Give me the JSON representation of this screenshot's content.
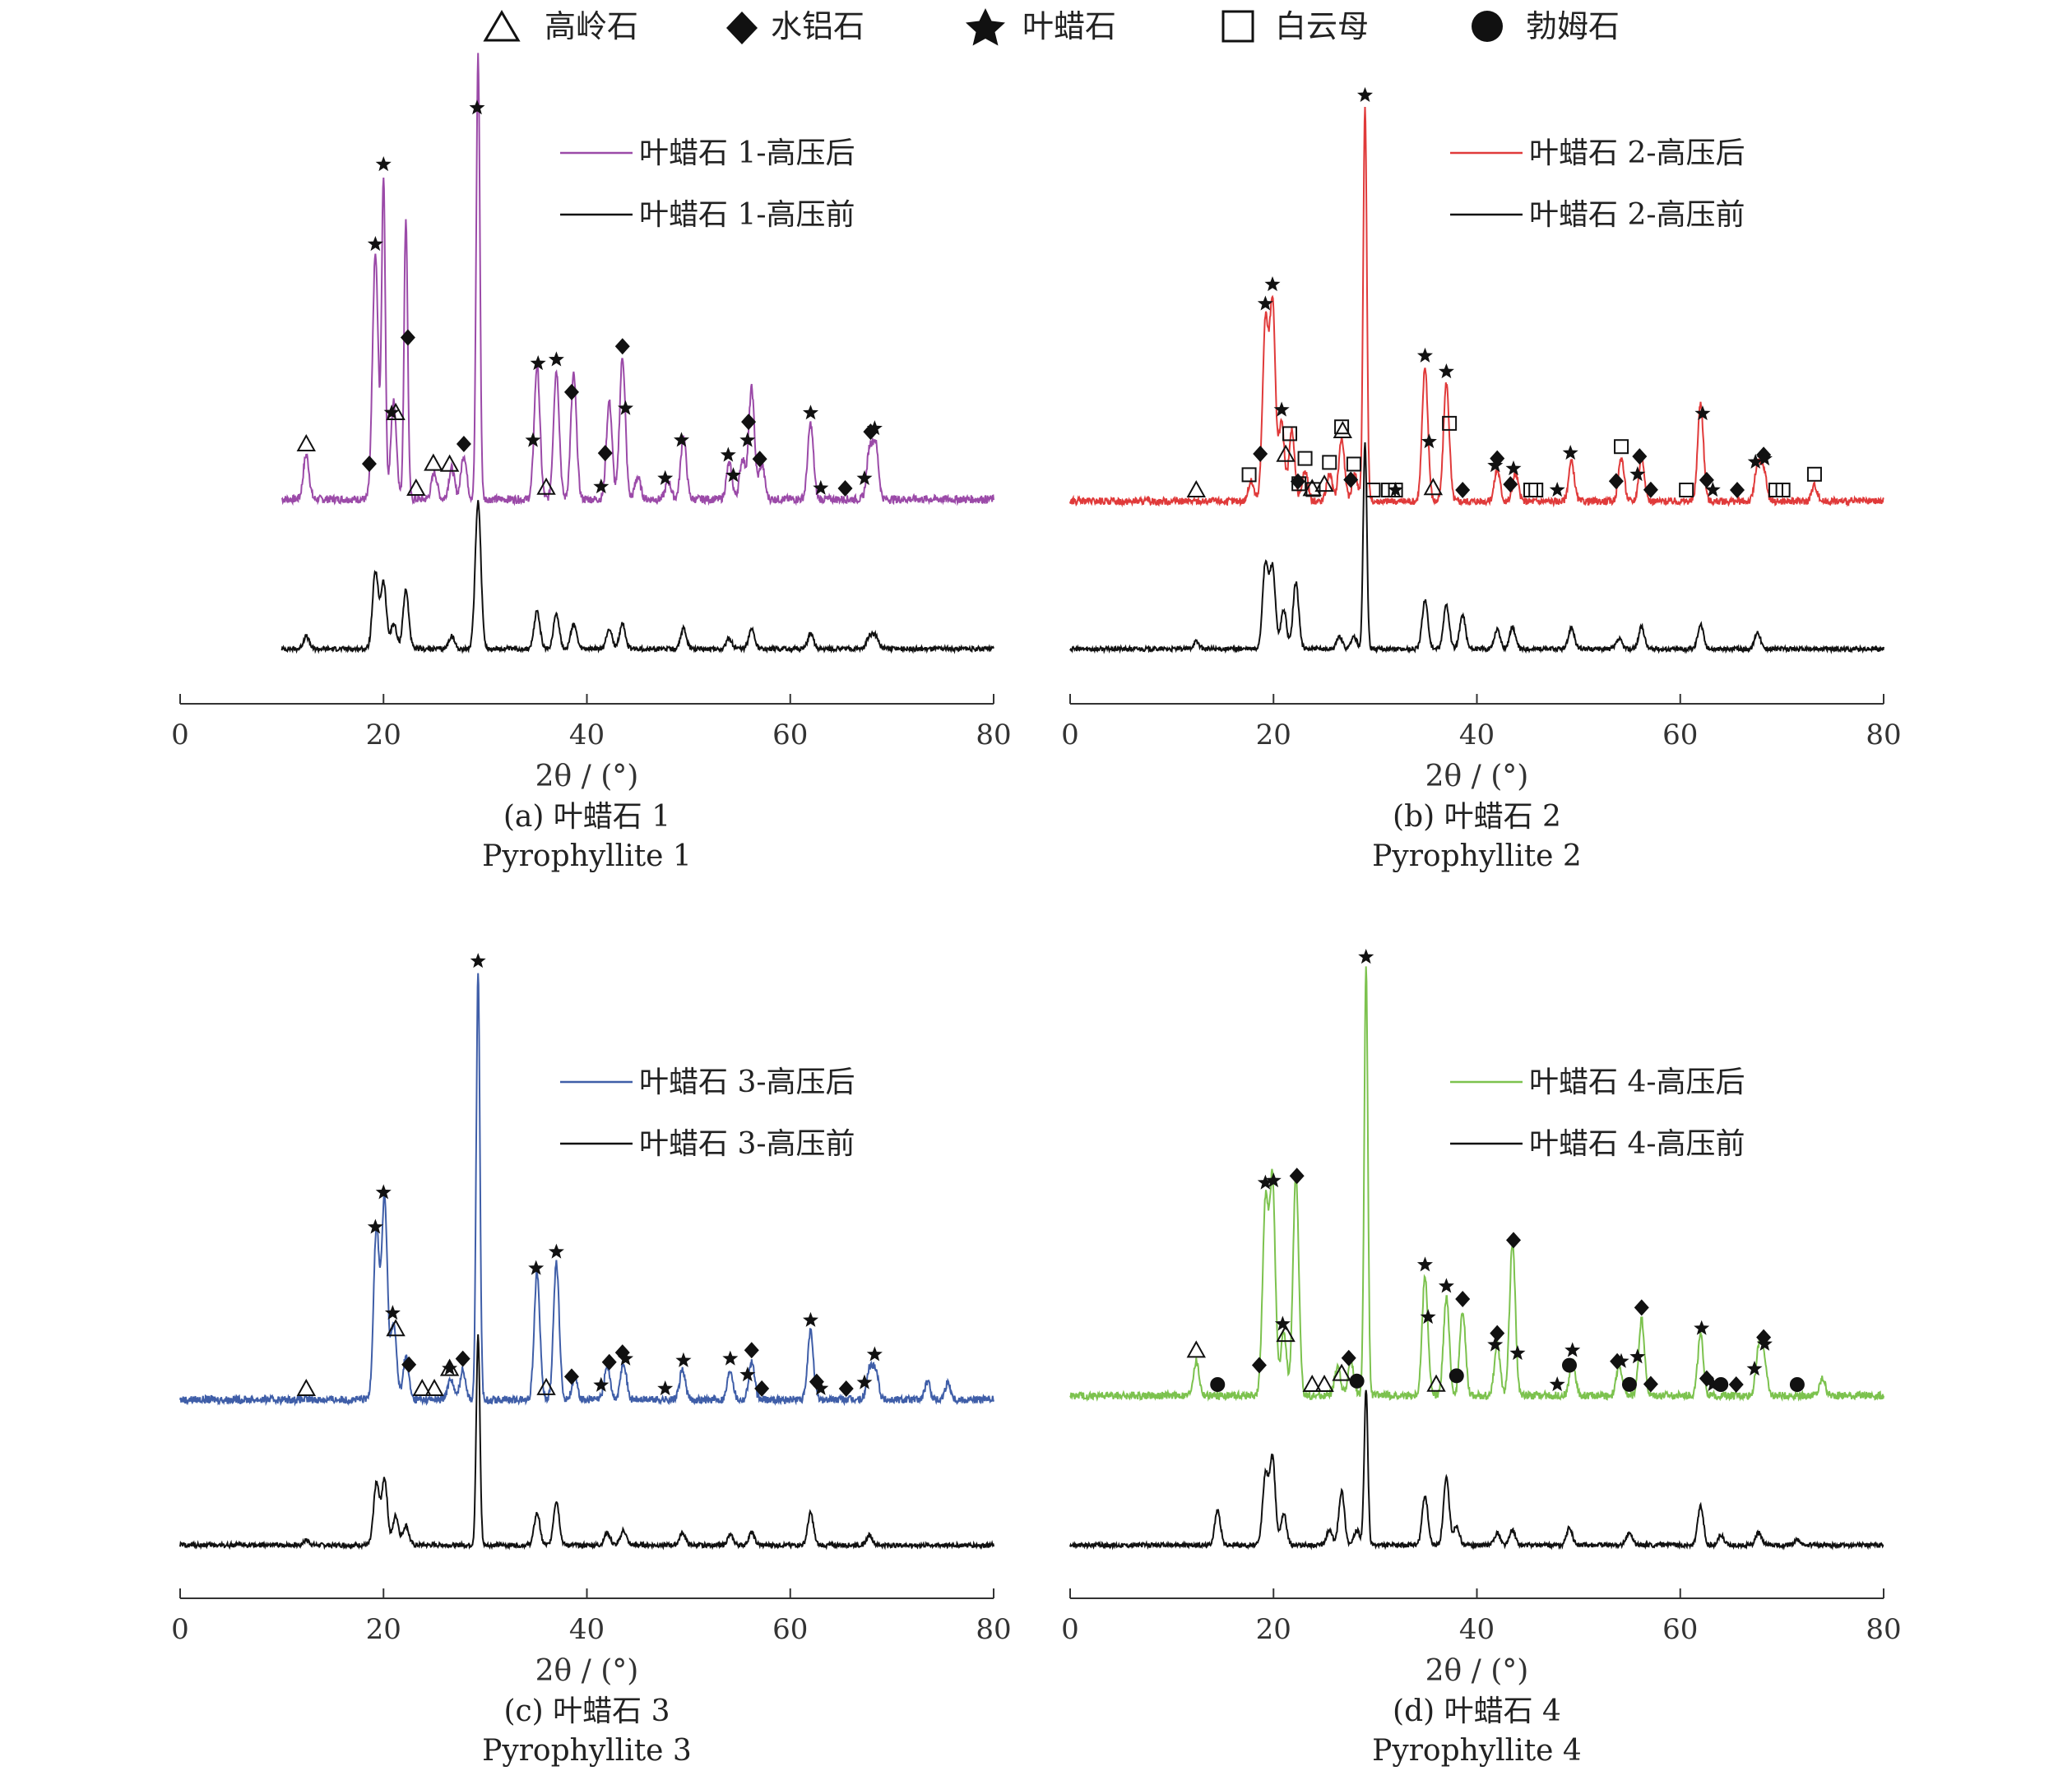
{
  "legend_top": [
    {
      "label": "高岭石",
      "marker": "triangle-open"
    },
    {
      "label": "水铝石",
      "marker": "diamond-filled"
    },
    {
      "label": "叶蜡石",
      "marker": "star-filled"
    },
    {
      "label": "白云母",
      "marker": "square-open"
    },
    {
      "label": "勃姆石",
      "marker": "circle-filled"
    }
  ],
  "chart_data": [
    {
      "type": "line",
      "caption_cn": "(a) 叶蜡石 1",
      "caption_en": "Pyrophyllite 1",
      "xlabel": "2θ / (°)",
      "xlim": [
        0,
        80
      ],
      "xticks": [
        0,
        20,
        40,
        60,
        80
      ],
      "y_ticks_shown": false,
      "x_start": 10,
      "series": [
        {
          "name": "叶蜡石 1-高压后",
          "color": "#9b4aa8",
          "peaks": [
            [
              12.4,
              0.1
            ],
            [
              19.2,
              0.55
            ],
            [
              20.0,
              0.72
            ],
            [
              21.0,
              0.22
            ],
            [
              22.2,
              0.63
            ],
            [
              25.0,
              0.06
            ],
            [
              26.7,
              0.07
            ],
            [
              27.9,
              0.1
            ],
            [
              29.3,
              1.0
            ],
            [
              35.1,
              0.3
            ],
            [
              37.0,
              0.29
            ],
            [
              38.7,
              0.28
            ],
            [
              42.2,
              0.22
            ],
            [
              43.5,
              0.32
            ],
            [
              45.0,
              0.05
            ],
            [
              48.0,
              0.04
            ],
            [
              49.5,
              0.14
            ],
            [
              54.0,
              0.08
            ],
            [
              55.3,
              0.09
            ],
            [
              56.2,
              0.25
            ],
            [
              57.2,
              0.08
            ],
            [
              62.0,
              0.17
            ],
            [
              67.8,
              0.11
            ],
            [
              68.4,
              0.12
            ]
          ]
        },
        {
          "name": "叶蜡石 1-高压前",
          "color": "#111111",
          "peaks": [
            [
              12.4,
              0.05
            ],
            [
              19.2,
              0.3
            ],
            [
              20.0,
              0.26
            ],
            [
              21.0,
              0.1
            ],
            [
              22.2,
              0.23
            ],
            [
              26.7,
              0.05
            ],
            [
              29.3,
              0.58
            ],
            [
              35.1,
              0.15
            ],
            [
              37.0,
              0.14
            ],
            [
              38.7,
              0.1
            ],
            [
              42.2,
              0.08
            ],
            [
              43.5,
              0.1
            ],
            [
              49.5,
              0.08
            ],
            [
              54.0,
              0.04
            ],
            [
              56.2,
              0.08
            ],
            [
              62.0,
              0.06
            ],
            [
              67.8,
              0.05
            ],
            [
              68.4,
              0.05
            ]
          ]
        }
      ],
      "annotations": [
        {
          "marker": "triangle-open",
          "x": [
            12.4,
            21.2,
            23.2,
            24.9,
            26.5,
            36.0
          ]
        },
        {
          "marker": "diamond-filled",
          "x": [
            18.6,
            22.4,
            27.9,
            38.5,
            41.8,
            43.5,
            55.9,
            57.0,
            65.4,
            67.9
          ]
        },
        {
          "marker": "star-filled",
          "x": [
            19.2,
            20.0,
            20.8,
            29.2,
            34.7,
            35.2,
            37.0,
            41.4,
            43.8,
            47.7,
            49.3,
            53.9,
            54.4,
            55.8,
            62.0,
            63.0,
            67.3,
            68.3
          ]
        }
      ]
    },
    {
      "type": "line",
      "caption_cn": "(b) 叶蜡石 2",
      "caption_en": "Pyrophyllite 2",
      "xlabel": "2θ / (°)",
      "xlim": [
        0,
        80
      ],
      "xticks": [
        0,
        20,
        40,
        60,
        80
      ],
      "y_ticks_shown": false,
      "x_start": 0,
      "series": [
        {
          "name": "叶蜡石 2-高压后",
          "color": "#e03a3a",
          "peaks": [
            [
              17.8,
              0.05
            ],
            [
              19.2,
              0.45
            ],
            [
              19.9,
              0.5
            ],
            [
              20.8,
              0.2
            ],
            [
              21.8,
              0.18
            ],
            [
              23.1,
              0.08
            ],
            [
              25.5,
              0.07
            ],
            [
              26.7,
              0.16
            ],
            [
              28.0,
              0.07
            ],
            [
              29.0,
              1.0
            ],
            [
              34.9,
              0.34
            ],
            [
              37.0,
              0.3
            ],
            [
              42.0,
              0.08
            ],
            [
              43.8,
              0.07
            ],
            [
              49.3,
              0.1
            ],
            [
              54.2,
              0.11
            ],
            [
              56.2,
              0.11
            ],
            [
              62.0,
              0.25
            ],
            [
              67.6,
              0.09
            ],
            [
              68.2,
              0.08
            ],
            [
              73.2,
              0.04
            ]
          ]
        },
        {
          "name": "叶蜡石 2-高压前",
          "color": "#111111",
          "peaks": [
            [
              12.4,
              0.03
            ],
            [
              19.2,
              0.34
            ],
            [
              19.9,
              0.33
            ],
            [
              21.0,
              0.16
            ],
            [
              22.2,
              0.27
            ],
            [
              26.5,
              0.05
            ],
            [
              27.9,
              0.05
            ],
            [
              29.0,
              0.84
            ],
            [
              34.9,
              0.2
            ],
            [
              37.0,
              0.18
            ],
            [
              38.6,
              0.14
            ],
            [
              42.0,
              0.08
            ],
            [
              43.5,
              0.09
            ],
            [
              49.3,
              0.09
            ],
            [
              54.0,
              0.04
            ],
            [
              56.2,
              0.09
            ],
            [
              62.0,
              0.1
            ],
            [
              67.6,
              0.07
            ]
          ]
        }
      ],
      "annotations": [
        {
          "marker": "triangle-open",
          "x": [
            12.4,
            21.2,
            23.8,
            25.0,
            26.8,
            35.7
          ]
        },
        {
          "marker": "diamond-filled",
          "x": [
            18.7,
            22.4,
            27.6,
            38.6,
            42.0,
            43.3,
            53.7,
            56.0,
            57.1,
            62.6,
            65.6,
            68.2
          ]
        },
        {
          "marker": "star-filled",
          "x": [
            19.2,
            19.9,
            20.8,
            29.0,
            32.0,
            34.9,
            35.3,
            37.0,
            41.8,
            43.6,
            47.9,
            49.2,
            55.8,
            62.2,
            63.2,
            67.4,
            68.3
          ]
        },
        {
          "marker": "square-open",
          "x": [
            17.6,
            21.6,
            22.5,
            23.1,
            23.9,
            25.5,
            26.7,
            27.9,
            29.8,
            31.3,
            32.0,
            37.3,
            45.3,
            45.8,
            54.2,
            60.6,
            69.4,
            70.1,
            73.2
          ]
        }
      ]
    },
    {
      "type": "line",
      "caption_cn": "(c) 叶蜡石 3",
      "caption_en": "Pyrophyllite 3",
      "xlabel": "2θ / (°)",
      "xlim": [
        0,
        80
      ],
      "xticks": [
        0,
        20,
        40,
        60,
        80
      ],
      "y_ticks_shown": false,
      "x_start": 0,
      "series": [
        {
          "name": "叶蜡石 3-高压后",
          "color": "#3f5ea8",
          "peaks": [
            [
              19.3,
              0.4
            ],
            [
              20.1,
              0.47
            ],
            [
              21.0,
              0.18
            ],
            [
              22.2,
              0.1
            ],
            [
              26.6,
              0.05
            ],
            [
              27.8,
              0.07
            ],
            [
              29.3,
              1.0
            ],
            [
              35.1,
              0.3
            ],
            [
              37.0,
              0.32
            ],
            [
              38.8,
              0.05
            ],
            [
              42.0,
              0.08
            ],
            [
              43.6,
              0.09
            ],
            [
              49.4,
              0.07
            ],
            [
              54.1,
              0.07
            ],
            [
              56.2,
              0.09
            ],
            [
              62.0,
              0.16
            ],
            [
              67.8,
              0.07
            ],
            [
              68.4,
              0.07
            ],
            [
              73.5,
              0.04
            ],
            [
              75.5,
              0.04
            ]
          ]
        },
        {
          "name": "叶蜡石 3-高压前",
          "color": "#111111",
          "peaks": [
            [
              12.4,
              0.02
            ],
            [
              19.3,
              0.25
            ],
            [
              20.1,
              0.27
            ],
            [
              21.2,
              0.12
            ],
            [
              22.2,
              0.08
            ],
            [
              29.3,
              0.85
            ],
            [
              35.1,
              0.13
            ],
            [
              37.0,
              0.18
            ],
            [
              42.0,
              0.05
            ],
            [
              43.6,
              0.06
            ],
            [
              49.4,
              0.05
            ],
            [
              54.1,
              0.04
            ],
            [
              56.2,
              0.05
            ],
            [
              62.0,
              0.13
            ],
            [
              67.8,
              0.04
            ]
          ]
        }
      ],
      "annotations": [
        {
          "marker": "triangle-open",
          "x": [
            12.4,
            21.2,
            23.8,
            25.0,
            26.5,
            36.0
          ]
        },
        {
          "marker": "diamond-filled",
          "x": [
            22.5,
            27.8,
            38.5,
            42.2,
            43.5,
            56.2,
            57.2,
            62.6,
            65.5
          ]
        },
        {
          "marker": "star-filled",
          "x": [
            19.2,
            20.0,
            20.9,
            26.5,
            29.3,
            35.0,
            37.0,
            41.4,
            43.8,
            47.7,
            49.5,
            54.1,
            55.8,
            62.0,
            63.0,
            67.3,
            68.3
          ]
        }
      ]
    },
    {
      "type": "line",
      "caption_cn": "(d) 叶蜡石 4",
      "caption_en": "Pyrophyllite 4",
      "xlabel": "2θ / (°)",
      "xlim": [
        0,
        80
      ],
      "xticks": [
        0,
        20,
        40,
        60,
        80
      ],
      "y_ticks_shown": false,
      "x_start": 0,
      "series": [
        {
          "name": "叶蜡石 4-高压后",
          "color": "#7cc24e",
          "peaks": [
            [
              12.4,
              0.08
            ],
            [
              19.2,
              0.45
            ],
            [
              19.9,
              0.5
            ],
            [
              21.0,
              0.15
            ],
            [
              22.2,
              0.52
            ],
            [
              26.3,
              0.07
            ],
            [
              27.6,
              0.08
            ],
            [
              29.1,
              1.0
            ],
            [
              34.9,
              0.28
            ],
            [
              37.0,
              0.23
            ],
            [
              38.6,
              0.2
            ],
            [
              42.0,
              0.12
            ],
            [
              43.5,
              0.36
            ],
            [
              49.4,
              0.08
            ],
            [
              54.0,
              0.07
            ],
            [
              56.2,
              0.18
            ],
            [
              62.0,
              0.14
            ],
            [
              67.7,
              0.1
            ],
            [
              68.2,
              0.09
            ],
            [
              74.0,
              0.04
            ]
          ]
        },
        {
          "name": "叶蜡石 4-高压前",
          "color": "#111111",
          "peaks": [
            [
              14.5,
              0.14
            ],
            [
              19.2,
              0.28
            ],
            [
              19.9,
              0.35
            ],
            [
              21.0,
              0.13
            ],
            [
              25.5,
              0.06
            ],
            [
              26.7,
              0.22
            ],
            [
              28.2,
              0.06
            ],
            [
              29.1,
              0.63
            ],
            [
              34.9,
              0.2
            ],
            [
              37.0,
              0.27
            ],
            [
              38.0,
              0.08
            ],
            [
              42.0,
              0.05
            ],
            [
              43.5,
              0.06
            ],
            [
              49.1,
              0.07
            ],
            [
              55.0,
              0.05
            ],
            [
              62.0,
              0.16
            ],
            [
              64.0,
              0.04
            ],
            [
              67.7,
              0.05
            ],
            [
              71.5,
              0.02
            ]
          ]
        }
      ],
      "annotations": [
        {
          "marker": "triangle-open",
          "x": [
            12.4,
            21.2,
            23.8,
            25.0,
            26.7,
            36.0
          ]
        },
        {
          "marker": "diamond-filled",
          "x": [
            18.6,
            22.3,
            27.4,
            38.6,
            42.0,
            43.6,
            53.8,
            56.2,
            57.1,
            62.6,
            65.5,
            68.2
          ]
        },
        {
          "marker": "star-filled",
          "x": [
            19.2,
            20.0,
            20.9,
            29.1,
            34.9,
            35.2,
            37.0,
            41.8,
            44.0,
            47.9,
            49.4,
            54.2,
            55.8,
            62.1,
            63.2,
            67.3,
            68.3
          ]
        },
        {
          "marker": "circle-filled",
          "x": [
            14.5,
            28.2,
            38.0,
            49.1,
            55.0,
            64.0,
            71.5
          ]
        }
      ]
    }
  ]
}
